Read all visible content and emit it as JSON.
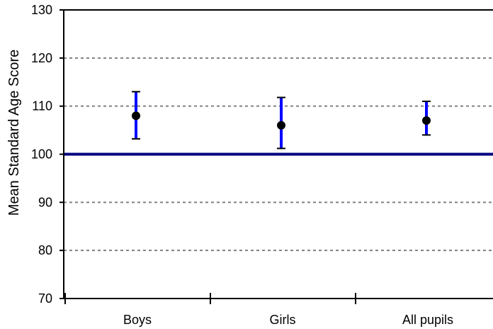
{
  "chart_data": {
    "type": "scatter",
    "title": "",
    "xlabel": "",
    "ylabel": "Mean Standard Age Score",
    "ylim": [
      70,
      130
    ],
    "yticks": [
      70,
      80,
      90,
      100,
      110,
      120,
      130
    ],
    "ytick_labels": [
      "70",
      "80",
      "90",
      "100",
      "110",
      "120",
      "130"
    ],
    "categories": [
      "Boys",
      "Girls",
      "All pupils"
    ],
    "series": [
      {
        "values": [
          108,
          106,
          107
        ],
        "error_low": [
          103.2,
          101.2,
          104.0
        ],
        "error_high": [
          113.0,
          111.8,
          111.0
        ]
      }
    ],
    "reference_line": 100,
    "grid": "horizontal dashed",
    "legend": "none",
    "colors": {
      "reference_line": "#000080",
      "error_bar": "#0000ff",
      "error_cap": "#000000",
      "marker": "#000000",
      "grid": "#808080",
      "axis": "#000000"
    }
  }
}
